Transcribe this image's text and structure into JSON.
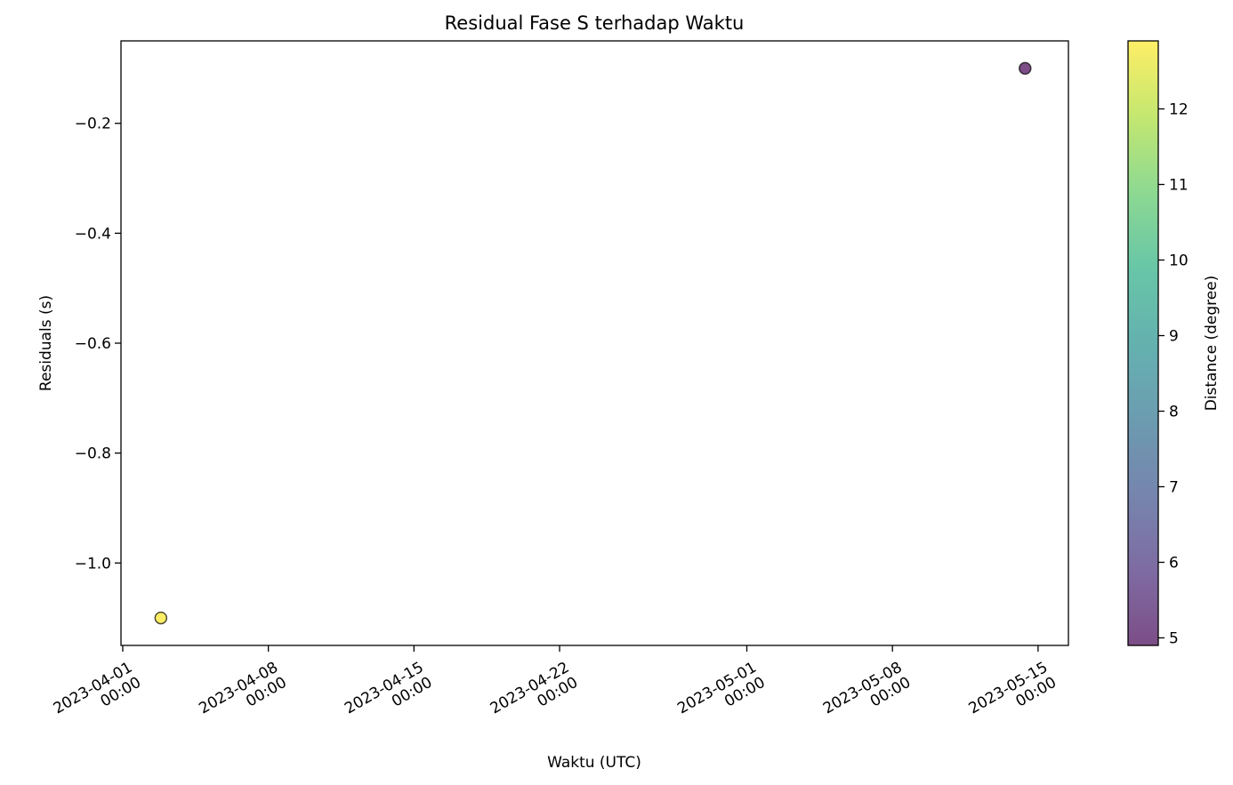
{
  "chart_data": {
    "type": "scatter",
    "title": "Residual Fase S terhadap Waktu",
    "xlabel": "Waktu (UTC)",
    "ylabel": "Residuals (s)",
    "x_axis_type": "date",
    "xlim": [
      "2023-03-31T22:00",
      "2023-05-16T11:00"
    ],
    "ylim": [
      -1.15,
      -0.05
    ],
    "x_ticks": [
      {
        "value": "2023-04-01T00:00",
        "line1": "2023-04-01",
        "line2": "00:00"
      },
      {
        "value": "2023-04-08T00:00",
        "line1": "2023-04-08",
        "line2": "00:00"
      },
      {
        "value": "2023-04-15T00:00",
        "line1": "2023-04-15",
        "line2": "00:00"
      },
      {
        "value": "2023-04-22T00:00",
        "line1": "2023-04-22",
        "line2": "00:00"
      },
      {
        "value": "2023-05-01T00:00",
        "line1": "2023-05-01",
        "line2": "00:00"
      },
      {
        "value": "2023-05-08T00:00",
        "line1": "2023-05-08",
        "line2": "00:00"
      },
      {
        "value": "2023-05-15T00:00",
        "line1": "2023-05-15",
        "line2": "00:00"
      }
    ],
    "y_ticks": [
      {
        "value": -0.2,
        "label": "−0.2"
      },
      {
        "value": -0.4,
        "label": "−0.4"
      },
      {
        "value": -0.6,
        "label": "−0.6"
      },
      {
        "value": -0.8,
        "label": "−0.8"
      },
      {
        "value": -1.0,
        "label": "−1.0"
      }
    ],
    "points": [
      {
        "x": "2023-04-02T20:00",
        "y": -1.1,
        "distance": 12.9
      },
      {
        "x": "2023-05-14T09:00",
        "y": -0.1,
        "distance": 4.9
      }
    ],
    "colorbar": {
      "label": "Distance (degree)",
      "range": [
        4.9,
        12.9
      ],
      "colormap": "viridis",
      "ticks": [
        {
          "value": 5,
          "label": "5"
        },
        {
          "value": 6,
          "label": "6"
        },
        {
          "value": 7,
          "label": "7"
        },
        {
          "value": 8,
          "label": "8"
        },
        {
          "value": 9,
          "label": "9"
        },
        {
          "value": 10,
          "label": "10"
        },
        {
          "value": 11,
          "label": "11"
        },
        {
          "value": 12,
          "label": "12"
        }
      ]
    },
    "grid": false,
    "legend": "none"
  }
}
